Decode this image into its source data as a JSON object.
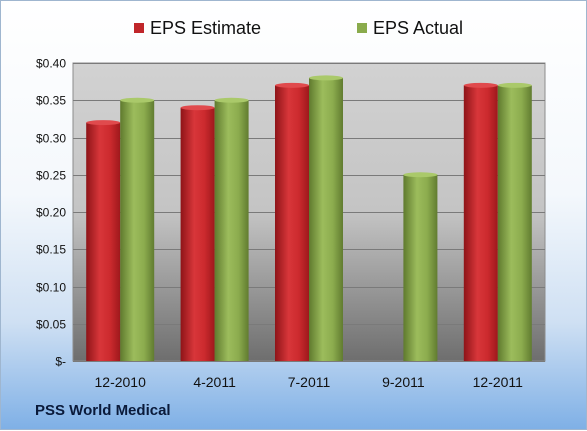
{
  "chart_data": {
    "type": "bar",
    "title": "",
    "xlabel": "",
    "ylabel": "",
    "categories": [
      "12-2010",
      "4-2011",
      "7-2011",
      "9-2011",
      "12-2011"
    ],
    "series": [
      {
        "name": "EPS Estimate",
        "color": "#c0262a",
        "values": [
          0.32,
          0.34,
          0.37,
          null,
          0.37
        ]
      },
      {
        "name": "EPS Actual",
        "color": "#8aab4c",
        "values": [
          0.35,
          0.35,
          0.38,
          0.25,
          0.37
        ]
      }
    ],
    "ylim": [
      0,
      0.4
    ],
    "yticks": [
      {
        "value": 0,
        "label": "$-"
      },
      {
        "value": 0.05,
        "label": "$0.05"
      },
      {
        "value": 0.1,
        "label": "$0.10"
      },
      {
        "value": 0.15,
        "label": "$0.15"
      },
      {
        "value": 0.2,
        "label": "$0.20"
      },
      {
        "value": 0.25,
        "label": "$0.25"
      },
      {
        "value": 0.3,
        "label": "$0.30"
      },
      {
        "value": 0.35,
        "label": "$0.35"
      },
      {
        "value": 0.4,
        "label": "$0.40"
      }
    ],
    "grid": true,
    "legend": "top-center"
  },
  "footer": {
    "company": "PSS World Medical"
  }
}
